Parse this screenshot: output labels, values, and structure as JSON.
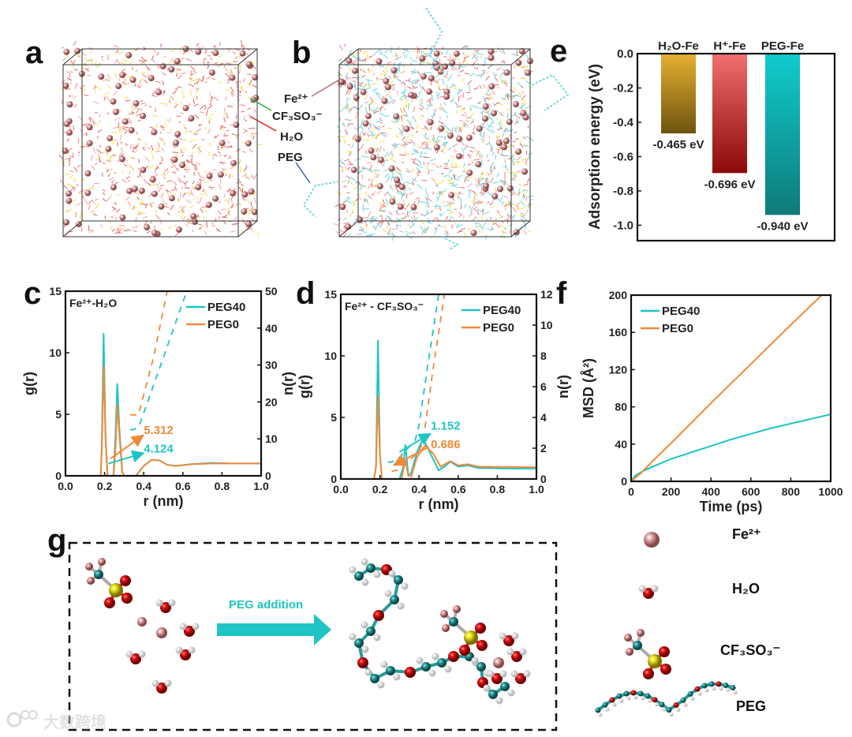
{
  "panel_labels": {
    "a": "a",
    "b": "b",
    "c": "c",
    "d": "d",
    "e": "e",
    "f": "f",
    "g": "g"
  },
  "panel_b_legend": [
    "Fe²⁺",
    "CF₃SO₃⁻",
    "H₂O",
    "PEG"
  ],
  "panel_g": {
    "arrow_label": "PEG addition"
  },
  "species_legend": [
    "Fe²⁺",
    "H₂O",
    "CF₃SO₃⁻",
    "PEG"
  ],
  "watermark": "大数跨境",
  "colors": {
    "peg40": "#1fc4c4",
    "peg0": "#ee8a3a",
    "fe": "#d99a9a",
    "o": "#e01010",
    "h": "#f0f0f0",
    "c": "#2a9a9a",
    "s": "#e8e020",
    "f": "#e0a0a0"
  },
  "chart_data": [
    {
      "id": "c",
      "type": "line",
      "title": "Fe²⁺-H₂O",
      "xlabel": "r (nm)",
      "ylabel": "g(r)",
      "y2label": "n(r)",
      "xlim": [
        0,
        1
      ],
      "ylim": [
        0,
        15
      ],
      "y2lim": [
        0,
        50
      ],
      "xticks": [
        "0.0",
        "0.2",
        "0.4",
        "0.6",
        "0.8",
        "1.0"
      ],
      "yticks": [
        "0",
        "5",
        "10",
        "15"
      ],
      "y2ticks": [
        "0",
        "10",
        "20",
        "30",
        "40",
        "50"
      ],
      "legend_position": "top-right",
      "series": [
        {
          "name": "PEG40",
          "color": "#1fc4c4",
          "axis": "g",
          "points": [
            [
              0.17,
              0
            ],
            [
              0.18,
              0
            ],
            [
              0.185,
              2
            ],
            [
              0.195,
              11.6
            ],
            [
              0.205,
              3
            ],
            [
              0.215,
              0
            ],
            [
              0.245,
              0
            ],
            [
              0.255,
              3
            ],
            [
              0.265,
              7.5
            ],
            [
              0.275,
              4
            ],
            [
              0.29,
              0.3
            ],
            [
              0.3,
              0
            ],
            [
              0.36,
              0
            ],
            [
              0.4,
              0.8
            ],
            [
              0.44,
              1.3
            ],
            [
              0.48,
              1.25
            ],
            [
              0.52,
              0.9
            ],
            [
              0.56,
              0.8
            ],
            [
              0.65,
              0.95
            ],
            [
              0.75,
              1.05
            ],
            [
              0.85,
              1.0
            ],
            [
              1.0,
              1.0
            ]
          ]
        },
        {
          "name": "PEG0",
          "color": "#ee8a3a",
          "axis": "g",
          "points": [
            [
              0.17,
              0
            ],
            [
              0.18,
              0
            ],
            [
              0.185,
              2
            ],
            [
              0.195,
              9
            ],
            [
              0.205,
              3
            ],
            [
              0.215,
              0
            ],
            [
              0.245,
              0
            ],
            [
              0.255,
              2
            ],
            [
              0.265,
              5.8
            ],
            [
              0.275,
              3.5
            ],
            [
              0.29,
              0.3
            ],
            [
              0.3,
              0
            ],
            [
              0.36,
              0
            ],
            [
              0.4,
              0.8
            ],
            [
              0.44,
              1.3
            ],
            [
              0.48,
              1.25
            ],
            [
              0.52,
              0.9
            ],
            [
              0.56,
              0.8
            ],
            [
              0.65,
              0.95
            ],
            [
              0.75,
              1.0
            ],
            [
              1.0,
              1.0
            ]
          ]
        },
        {
          "name": "PEG40 n(r)",
          "color": "#1fc4c4",
          "axis": "n",
          "dashed": true,
          "points": [
            [
              0.33,
              12.5
            ],
            [
              0.35,
              12.5
            ],
            [
              0.38,
              14
            ],
            [
              0.5,
              32
            ],
            [
              0.62,
              50
            ]
          ]
        },
        {
          "name": "PEG0 n(r)",
          "color": "#ee8a3a",
          "axis": "n",
          "dashed": true,
          "points": [
            [
              0.33,
              16.5
            ],
            [
              0.37,
              16.5
            ],
            [
              0.38,
              18
            ],
            [
              0.45,
              32
            ],
            [
              0.52,
              50
            ]
          ]
        }
      ],
      "annotations": [
        {
          "text": "5.312",
          "color": "#ee8a3a",
          "from": [
            0.23,
            1.4
          ],
          "to": [
            0.39,
            3.2
          ],
          "at": [
            0.4,
            3.4
          ]
        },
        {
          "text": "4.124",
          "color": "#1fc4c4",
          "from": [
            0.22,
            1.0
          ],
          "to": [
            0.39,
            1.8
          ],
          "at": [
            0.4,
            1.9
          ]
        }
      ]
    },
    {
      "id": "d",
      "type": "line",
      "title": "Fe²⁺ - CF₃SO₃⁻",
      "xlabel": "r (nm)",
      "ylabel": "g(r)",
      "y2label": "n(r)",
      "xlim": [
        0,
        1
      ],
      "ylim": [
        0,
        15
      ],
      "y2lim": [
        0,
        12
      ],
      "xticks": [
        "0.0",
        "0.2",
        "0.4",
        "0.6",
        "0.8",
        "1.0"
      ],
      "yticks": [
        "0",
        "5",
        "10",
        "15"
      ],
      "y2ticks": [
        "0",
        "2",
        "4",
        "6",
        "8",
        "10",
        "12"
      ],
      "legend_position": "top-right",
      "series": [
        {
          "name": "PEG40",
          "color": "#1fc4c4",
          "axis": "g",
          "points": [
            [
              0.17,
              0
            ],
            [
              0.18,
              1
            ],
            [
              0.19,
              11.3
            ],
            [
              0.2,
              2
            ],
            [
              0.21,
              0
            ],
            [
              0.3,
              0
            ],
            [
              0.32,
              1
            ],
            [
              0.33,
              2.8
            ],
            [
              0.345,
              0.3
            ],
            [
              0.36,
              0.5
            ],
            [
              0.39,
              2.2
            ],
            [
              0.42,
              3.3
            ],
            [
              0.46,
              2
            ],
            [
              0.5,
              0.7
            ],
            [
              0.53,
              1.0
            ],
            [
              0.56,
              1.4
            ],
            [
              0.6,
              1.0
            ],
            [
              0.65,
              1.1
            ],
            [
              0.7,
              0.9
            ],
            [
              0.85,
              0.85
            ],
            [
              1.0,
              0.85
            ]
          ]
        },
        {
          "name": "PEG0",
          "color": "#ee8a3a",
          "axis": "g",
          "points": [
            [
              0.17,
              0
            ],
            [
              0.18,
              1
            ],
            [
              0.19,
              6.8
            ],
            [
              0.2,
              2
            ],
            [
              0.21,
              0
            ],
            [
              0.31,
              0
            ],
            [
              0.33,
              1.5
            ],
            [
              0.345,
              0.3
            ],
            [
              0.36,
              0.2
            ],
            [
              0.39,
              1.8
            ],
            [
              0.43,
              2.7
            ],
            [
              0.47,
              2.1
            ],
            [
              0.51,
              1.0
            ],
            [
              0.56,
              1.45
            ],
            [
              0.6,
              1.1
            ],
            [
              0.65,
              1.2
            ],
            [
              0.7,
              1.0
            ],
            [
              1.0,
              0.95
            ]
          ]
        },
        {
          "name": "PEG40 n(r)",
          "color": "#1fc4c4",
          "axis": "n",
          "dashed": true,
          "points": [
            [
              0.24,
              1.1
            ],
            [
              0.26,
              1.1
            ],
            [
              0.3,
              1.4
            ],
            [
              0.38,
              2.5
            ],
            [
              0.4,
              3.5
            ],
            [
              0.44,
              7
            ],
            [
              0.5,
              12
            ]
          ]
        },
        {
          "name": "PEG0 n(r)",
          "color": "#ee8a3a",
          "axis": "n",
          "dashed": true,
          "points": [
            [
              0.26,
              0.5
            ],
            [
              0.3,
              0.6
            ],
            [
              0.4,
              1.8
            ],
            [
              0.42,
              2.4
            ],
            [
              0.47,
              7
            ],
            [
              0.53,
              12
            ]
          ]
        }
      ],
      "annotations": [
        {
          "text": "1.152",
          "color": "#1fc4c4",
          "from": [
            0.3,
            2.2
          ],
          "to": [
            0.45,
            3.6
          ],
          "at": [
            0.46,
            4.0
          ]
        },
        {
          "text": "0.686",
          "color": "#ee8a3a",
          "from": [
            0.45,
            2.6
          ],
          "to": [
            0.28,
            1.2
          ],
          "at": [
            0.46,
            2.5
          ]
        }
      ]
    },
    {
      "id": "e",
      "type": "bar",
      "ylabel": "Adsorption energy (eV)",
      "categories": [
        "H₂O-Fe",
        "H⁺-Fe",
        "PEG-Fe"
      ],
      "values": [
        -0.465,
        -0.696,
        -0.94
      ],
      "value_labels": [
        "-0.465 eV",
        "-0.696 eV",
        "-0.940 eV"
      ],
      "bar_colors": [
        [
          "#e6b030",
          "#6e5410"
        ],
        [
          "#f07070",
          "#8a0a0a"
        ],
        [
          "#10cccc",
          "#0e7a7a"
        ]
      ],
      "ylim": [
        -1.09,
        0
      ],
      "yticks": [
        "0.0",
        "-0.2",
        "-0.4",
        "-0.6",
        "-0.8",
        "-1.0"
      ]
    },
    {
      "id": "f",
      "type": "line",
      "xlabel": "Time (ps)",
      "ylabel": "MSD (Å²)",
      "xlim": [
        0,
        1000
      ],
      "ylim": [
        0,
        200
      ],
      "xticks": [
        "0",
        "200",
        "400",
        "600",
        "800",
        "1000"
      ],
      "yticks": [
        "0",
        "40",
        "80",
        "120",
        "160",
        "200"
      ],
      "legend_position": "top-left",
      "series": [
        {
          "name": "PEG40",
          "color": "#1fc4c4",
          "points": [
            [
              0,
              0
            ],
            [
              20,
              6
            ],
            [
              50,
              10
            ],
            [
              100,
              15
            ],
            [
              200,
              24
            ],
            [
              300,
              31
            ],
            [
              400,
              38
            ],
            [
              500,
              45
            ],
            [
              600,
              51
            ],
            [
              700,
              57
            ],
            [
              800,
              62
            ],
            [
              900,
              67
            ],
            [
              1000,
              72
            ]
          ]
        },
        {
          "name": "PEG0",
          "color": "#ee8a3a",
          "points": [
            [
              0,
              0
            ],
            [
              50,
              9
            ],
            [
              100,
              20
            ],
            [
              200,
              41
            ],
            [
              400,
              84
            ],
            [
              600,
              126
            ],
            [
              800,
              168
            ],
            [
              955,
              200
            ]
          ]
        }
      ]
    }
  ]
}
